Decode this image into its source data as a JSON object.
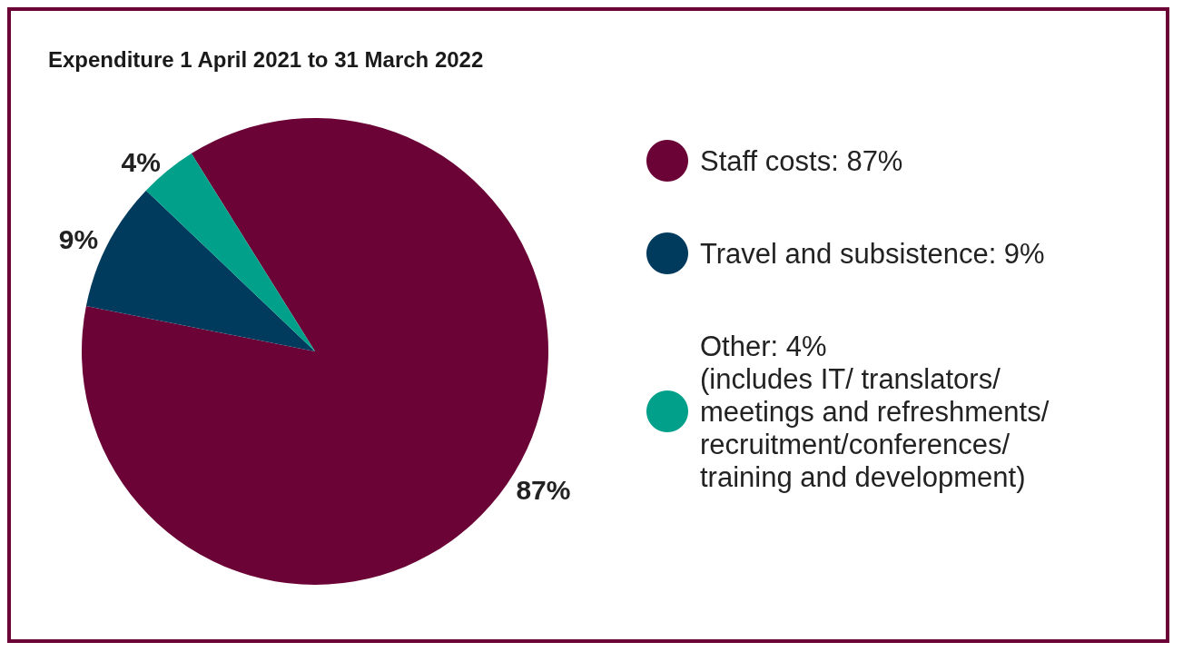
{
  "chart_data": {
    "type": "pie",
    "title": "Expenditure 1 April 2021 to 31 March 2022",
    "categories": [
      "Staff costs: 87%",
      "Travel and subsistence: 9%",
      "Other: 4%\n(includes IT/ translators/\nmeetings and refreshments/\nrecruitment/conferences/\ntraining and development)"
    ],
    "values": [
      87,
      9,
      4
    ],
    "colors": [
      "#6b0336",
      "#003a5d",
      "#00a08a"
    ],
    "value_labels": [
      "87%",
      "9%",
      "4%"
    ],
    "legend": "right"
  }
}
